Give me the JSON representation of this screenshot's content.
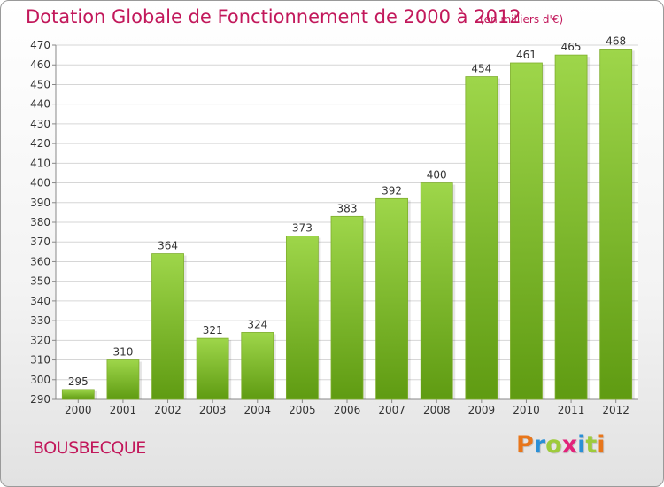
{
  "title": "Dotation Globale de Fonctionnement de 2000 à 2012",
  "unit": "(en milliers d'€)",
  "commune": "BOUSBECQUE",
  "logo": {
    "letters": [
      "P",
      "r",
      "o",
      "x",
      "i",
      "t",
      "i"
    ],
    "colors": [
      "#e8761b",
      "#2a8fd6",
      "#9ecb3c",
      "#e2227a",
      "#2a8fd6",
      "#9ecb3c",
      "#e8761b"
    ]
  },
  "colors": {
    "accent": "#c2185b",
    "bar_light": "#9ed64a",
    "bar_dark": "#5f9b12"
  },
  "chart_data": {
    "type": "bar",
    "categories": [
      "2000",
      "2001",
      "2002",
      "2003",
      "2004",
      "2005",
      "2006",
      "2007",
      "2008",
      "2009",
      "2010",
      "2011",
      "2012"
    ],
    "values": [
      295,
      310,
      364,
      321,
      324,
      373,
      383,
      392,
      400,
      454,
      461,
      465,
      468
    ],
    "title": "Dotation Globale de Fonctionnement de 2000 à 2012",
    "ylim": [
      290,
      470
    ],
    "yticks": [
      290,
      300,
      310,
      320,
      330,
      340,
      350,
      360,
      370,
      380,
      390,
      400,
      410,
      420,
      430,
      440,
      450,
      460,
      470
    ],
    "grid": true,
    "data_labels": true
  }
}
